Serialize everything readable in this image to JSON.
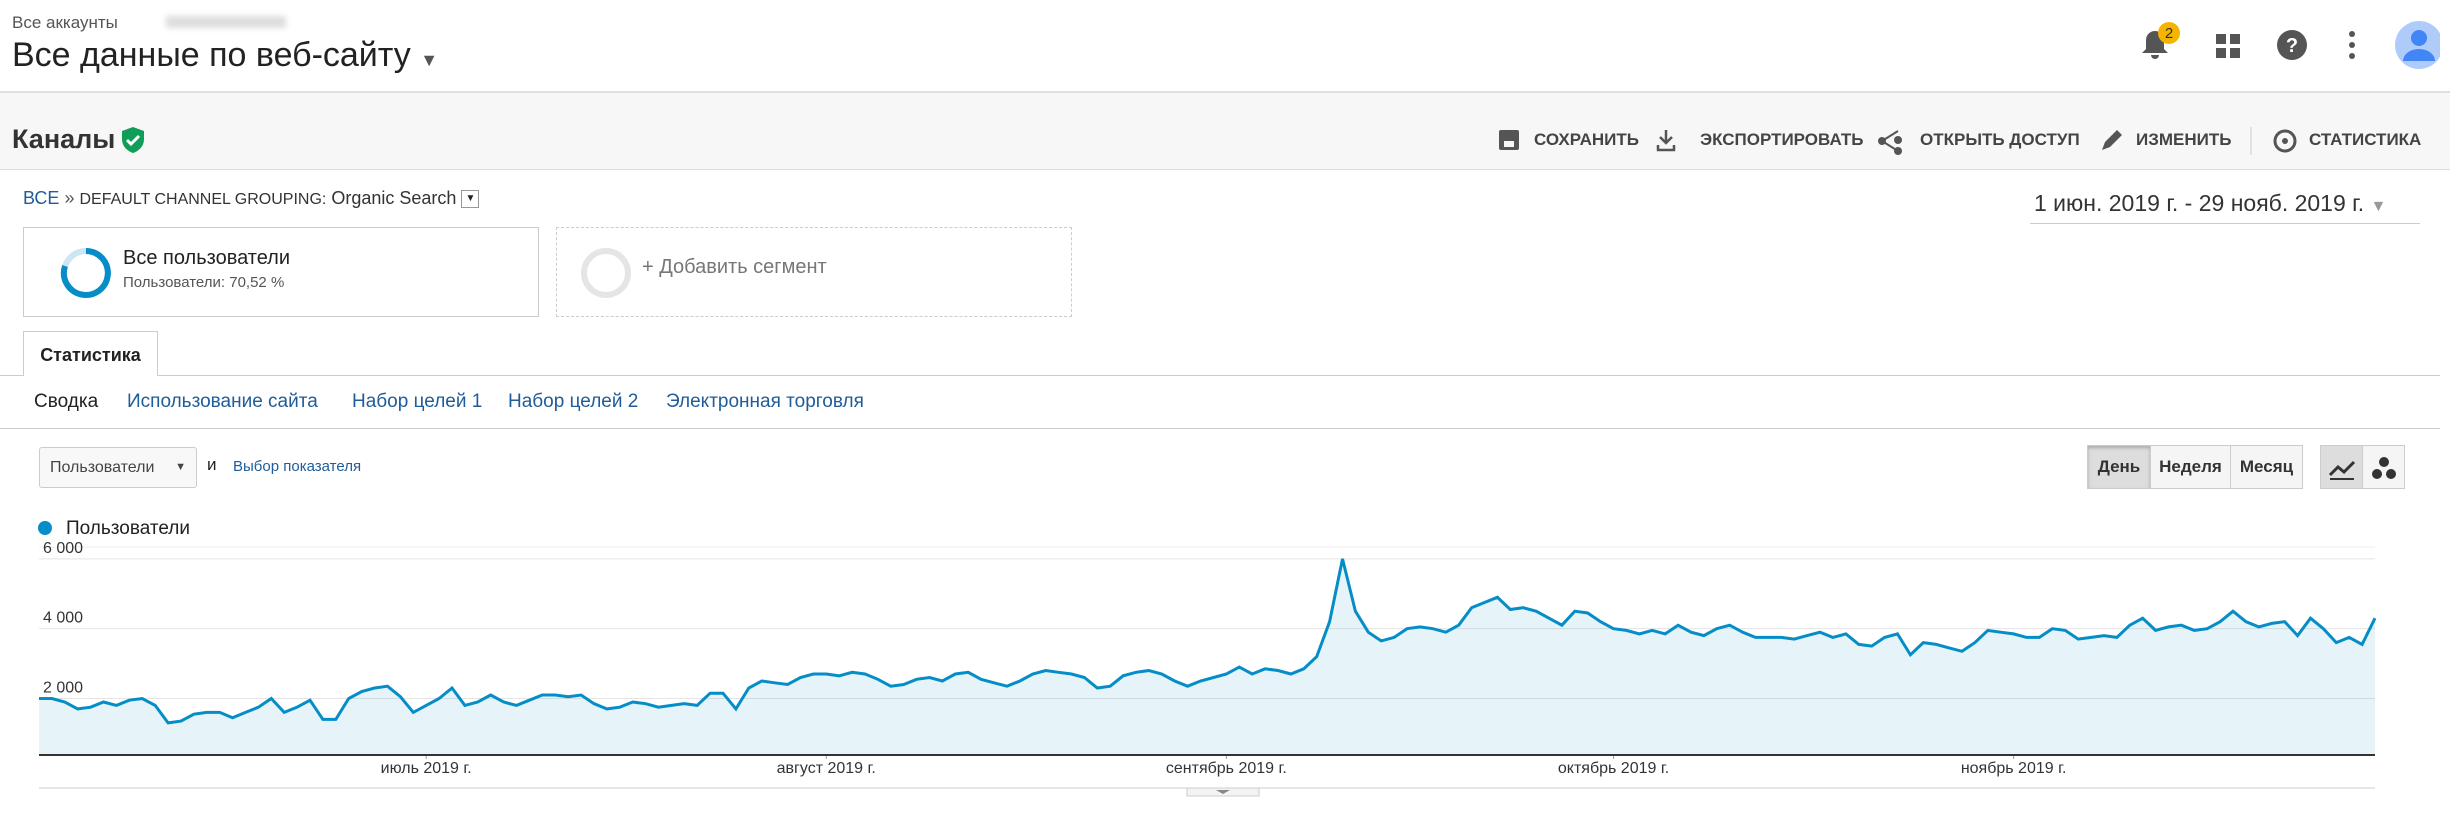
{
  "header": {
    "breadcrumb": "Все аккаунты",
    "title": "Все данные по веб-сайту",
    "notification_count": 2
  },
  "report": {
    "title": "Каналы",
    "actions": [
      "СОХРАНИТЬ",
      "ЭКСПОРТИРОВАТЬ",
      "ОТКРЫТЬ ДОСТУП",
      "ИЗМЕНИТЬ",
      "СТАТИСТИКА"
    ]
  },
  "path": {
    "root": "ВСЕ",
    "separator": "»",
    "dimension": "DEFAULT CHANNEL GROUPING:",
    "value": "Organic Search"
  },
  "date_range": "1 июн. 2019 г. - 29 нояб. 2019 г.",
  "segments": [
    {
      "name": "Все пользователи",
      "detail": "Пользователи: 70,52 %"
    },
    {
      "name": "+ Добавить сегмент"
    }
  ],
  "tab": "Статистика",
  "subtabs": [
    "Сводка",
    "Использование сайта",
    "Набор целей 1",
    "Набор целей 2",
    "Электронная торговля"
  ],
  "metric_select": "Пользователи",
  "conjunction": "и",
  "metric_picker": "Выбор показателя",
  "granularity": [
    "День",
    "Неделя",
    "Месяц"
  ],
  "chart_data": {
    "type": "area",
    "series": [
      {
        "name": "Пользователи",
        "color": "#058dc7",
        "values": [
          2000,
          2000,
          1900,
          1700,
          1750,
          1900,
          1800,
          1950,
          2000,
          1800,
          1300,
          1350,
          1550,
          1600,
          1600,
          1450,
          1600,
          1750,
          2000,
          1600,
          1750,
          1950,
          1400,
          1400,
          2000,
          2200,
          2300,
          2350,
          2050,
          1600,
          1800,
          2000,
          2300,
          1800,
          1900,
          2100,
          1900,
          1800,
          1950,
          2100,
          2100,
          2050,
          2100,
          1850,
          1700,
          1750,
          1900,
          1850,
          1750,
          1800,
          1850,
          1800,
          2150,
          2150,
          1700,
          2300,
          2500,
          2450,
          2400,
          2600,
          2700,
          2700,
          2650,
          2750,
          2700,
          2550,
          2350,
          2400,
          2550,
          2600,
          2500,
          2700,
          2750,
          2550,
          2450,
          2350,
          2500,
          2700,
          2800,
          2750,
          2700,
          2600,
          2300,
          2350,
          2650,
          2750,
          2800,
          2700,
          2500,
          2350,
          2500,
          2600,
          2700,
          2900,
          2700,
          2850,
          2800,
          2700,
          2850,
          3200,
          4200,
          6000,
          4500,
          3900,
          3650,
          3750,
          4000,
          4050,
          4000,
          3900,
          4100,
          4600,
          4750,
          4900,
          4550,
          4600,
          4500,
          4300,
          4100,
          4500,
          4450,
          4200,
          4000,
          3950,
          3850,
          3950,
          3850,
          4100,
          3900,
          3800,
          4000,
          4100,
          3900,
          3750,
          3750,
          3750,
          3700,
          3800,
          3900,
          3750,
          3850,
          3550,
          3500,
          3750,
          3850,
          3250,
          3600,
          3550,
          3450,
          3350,
          3600,
          3950,
          3900,
          3850,
          3750,
          3750,
          4000,
          3950,
          3700,
          3750,
          3800,
          3750,
          4100,
          4300,
          3950,
          4050,
          4100,
          3950,
          4000,
          4200,
          4500,
          4200,
          4050,
          4150,
          4200,
          3800,
          4300,
          4000,
          3600,
          3750,
          3550,
          4300
        ]
      }
    ],
    "ylim": [
      380,
      6340
    ],
    "yticks": [
      {
        "value": 2000,
        "label": "2 000"
      },
      {
        "value": 4000,
        "label": "4 000"
      },
      {
        "value": 6000,
        "label": "6 000"
      }
    ],
    "xticks": [
      {
        "value": 30,
        "label": "июль 2019 г."
      },
      {
        "value": 61,
        "label": "август 2019 г."
      },
      {
        "value": 92,
        "label": "сентябрь 2019 г."
      },
      {
        "value": 122,
        "label": "октябрь 2019 г."
      },
      {
        "value": 153,
        "label": "ноябрь 2019 г."
      }
    ],
    "grid": true
  }
}
